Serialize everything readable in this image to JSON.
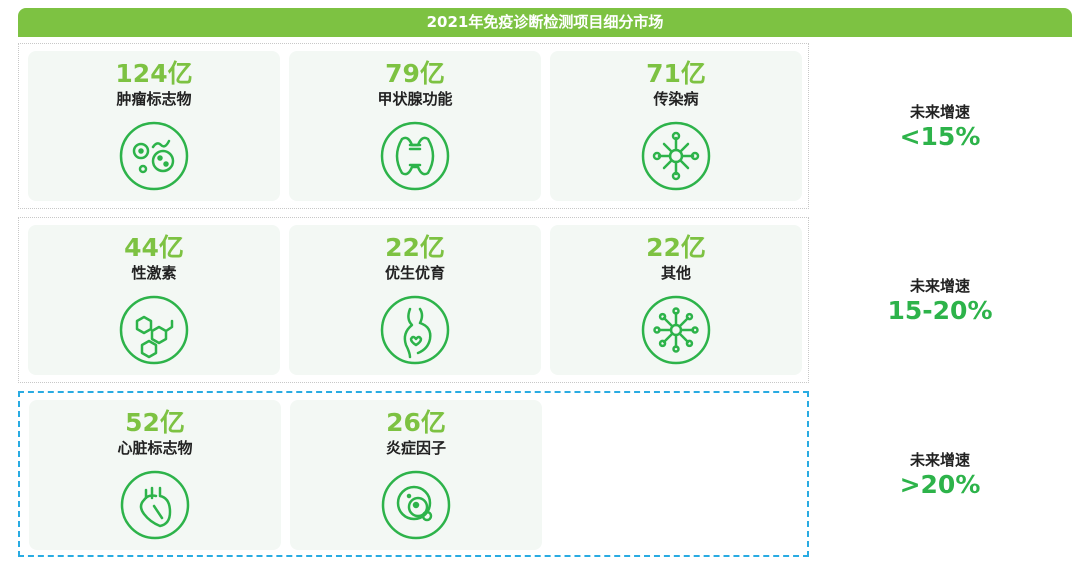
{
  "title": "2021年免疫诊断检测项目细分市场",
  "colors": {
    "header": "#7dc242",
    "value": "#7dc242",
    "icon": "#2db34a",
    "growth": "#2db34a",
    "highlight_border": "#29abe2"
  },
  "rows": [
    {
      "growth_label": "未来增速",
      "growth_value": "<15%",
      "items": [
        {
          "value": "124亿",
          "name": "肿瘤标志物",
          "icon": "tumor-cells-icon"
        },
        {
          "value": "79亿",
          "name": "甲状腺功能",
          "icon": "thyroid-icon"
        },
        {
          "value": "71亿",
          "name": "传染病",
          "icon": "virus-network-icon"
        }
      ]
    },
    {
      "growth_label": "未来增速",
      "growth_value": "15-20%",
      "items": [
        {
          "value": "44亿",
          "name": "性激素",
          "icon": "molecule-hexagon-icon"
        },
        {
          "value": "22亿",
          "name": "优生优育",
          "icon": "pregnancy-icon"
        },
        {
          "value": "22亿",
          "name": "其他",
          "icon": "network-node-icon"
        }
      ]
    },
    {
      "growth_label": "未来增速",
      "growth_value": ">20%",
      "items": [
        {
          "value": "52亿",
          "name": "心脏标志物",
          "icon": "heart-icon"
        },
        {
          "value": "26亿",
          "name": "炎症因子",
          "icon": "cell-icon"
        }
      ]
    }
  ]
}
